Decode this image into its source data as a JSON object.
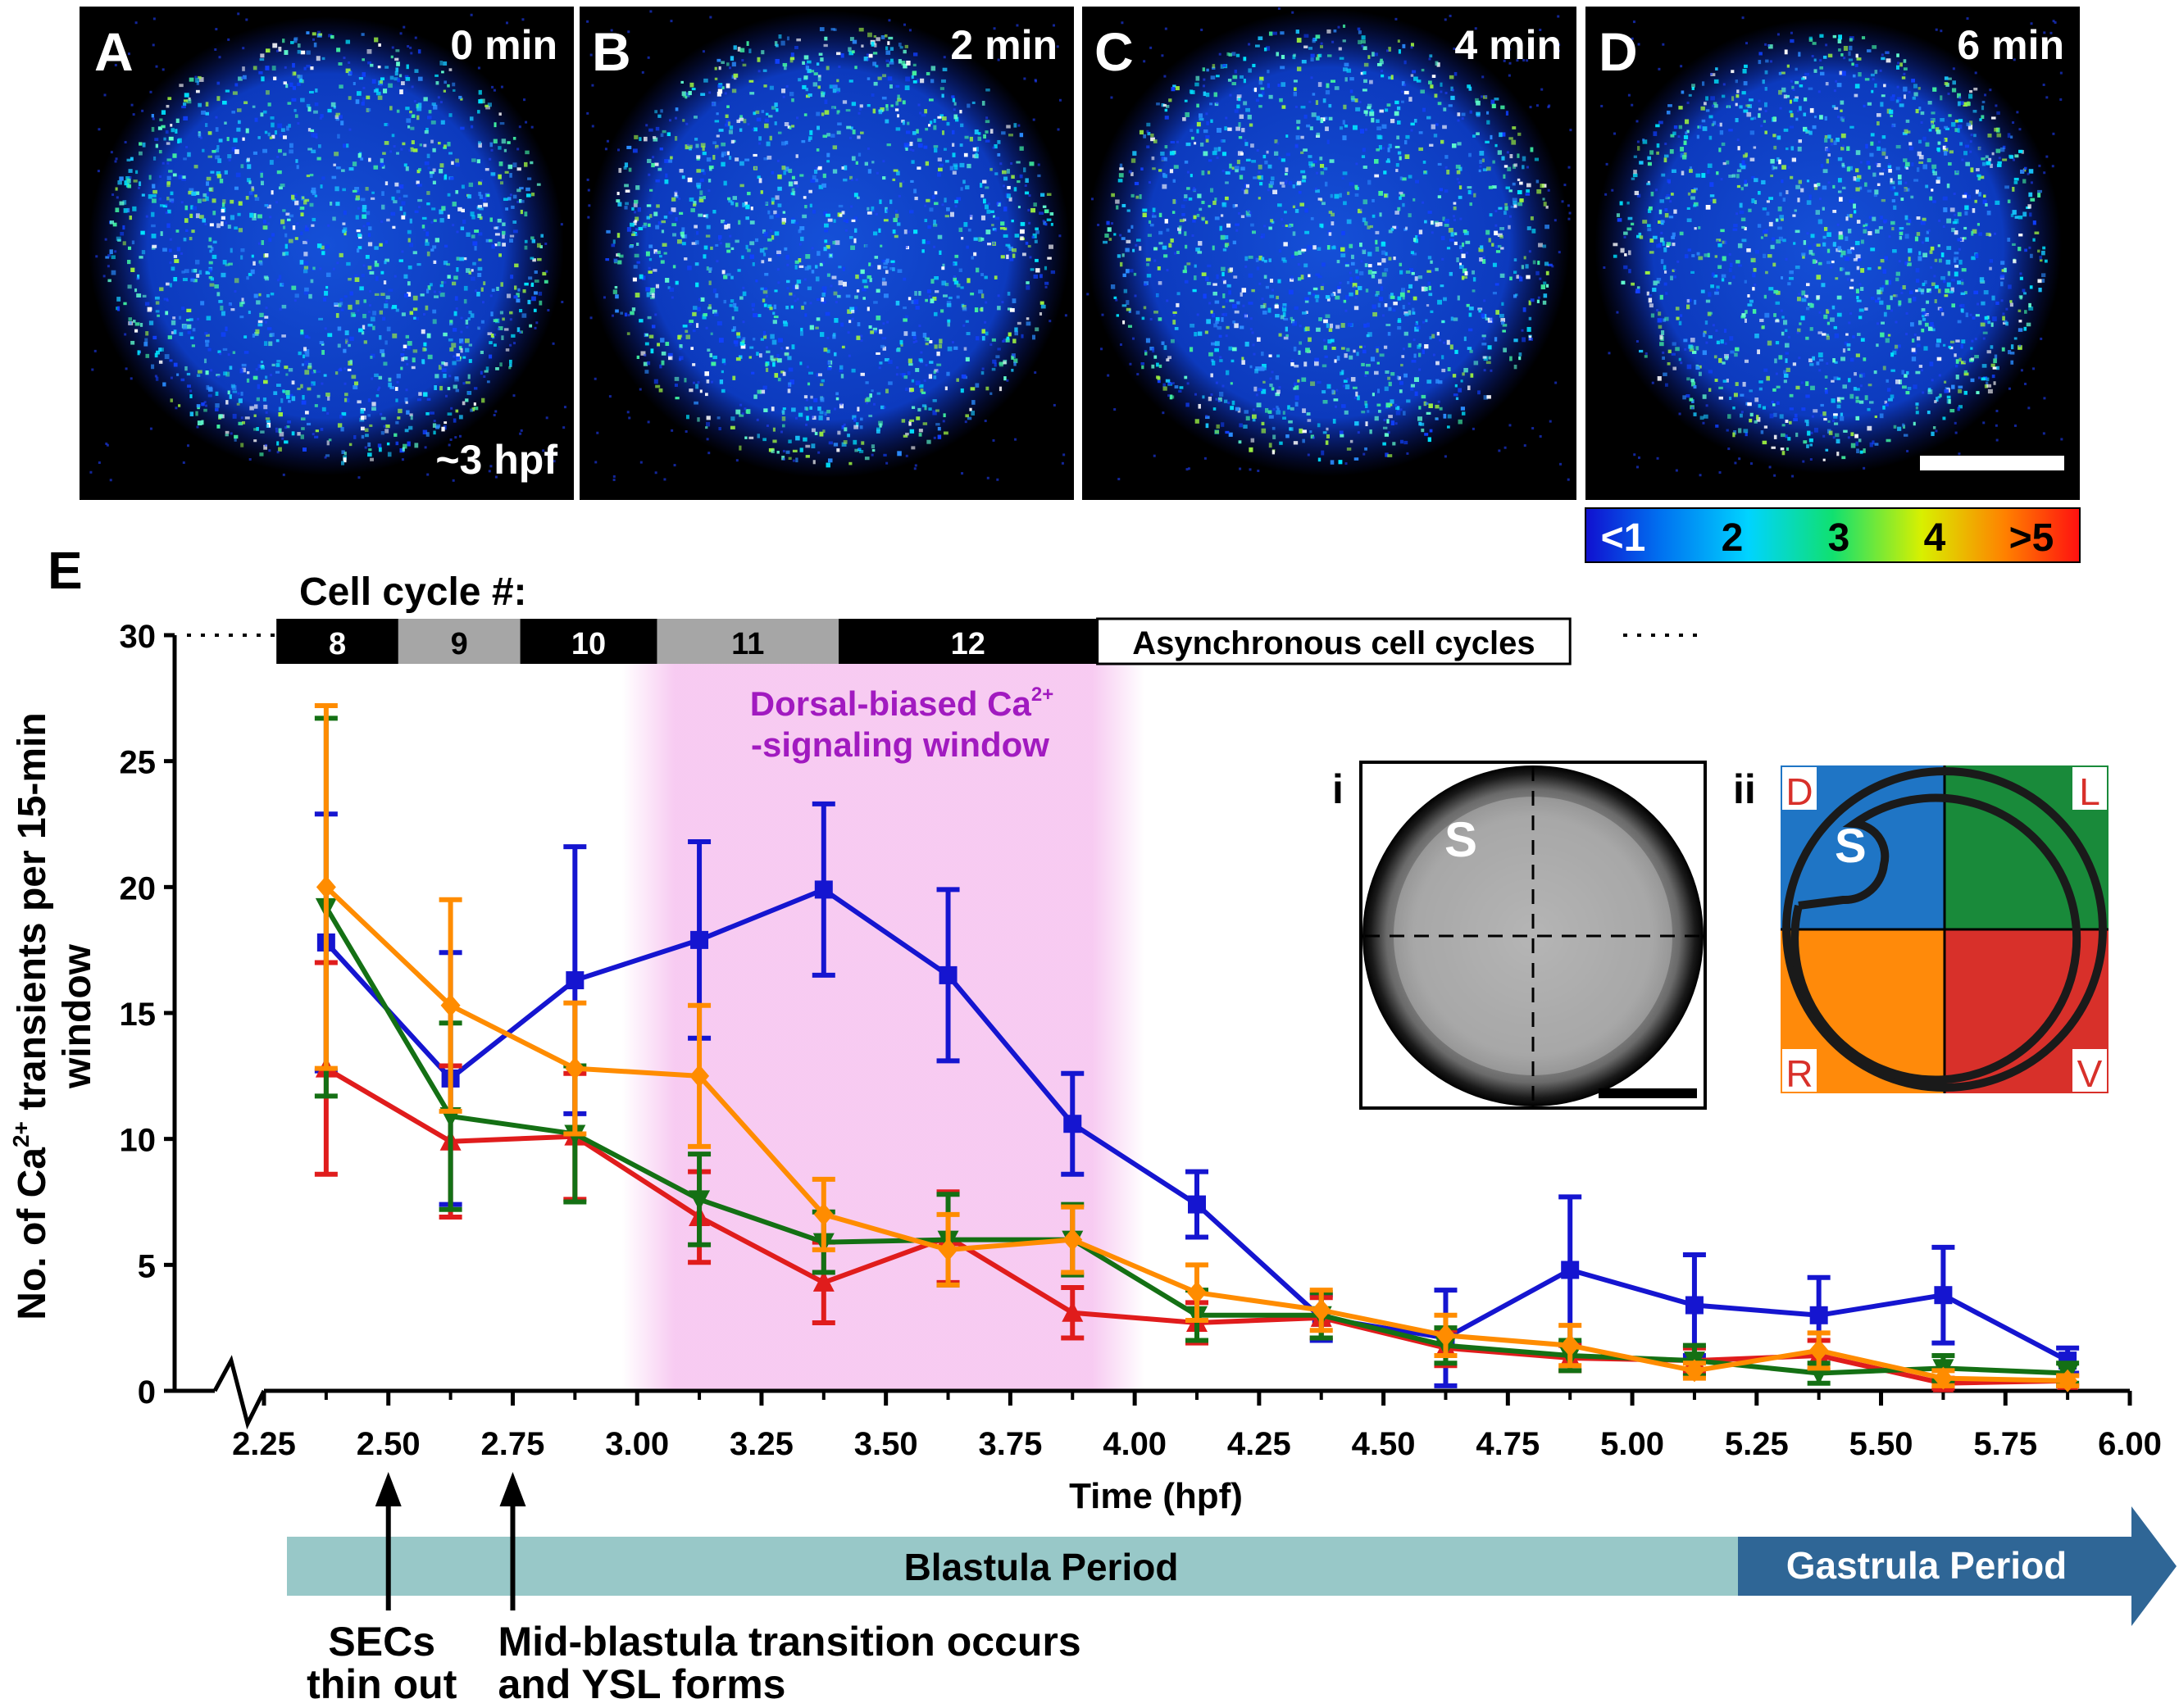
{
  "panels": [
    {
      "letter": "A",
      "time": "0 min",
      "note": "~3 hpf"
    },
    {
      "letter": "B",
      "time": "2 min"
    },
    {
      "letter": "C",
      "time": "4 min"
    },
    {
      "letter": "D",
      "time": "6 min"
    }
  ],
  "colorbar": {
    "labels": [
      "<1",
      "2",
      "3",
      "4",
      ">5"
    ]
  },
  "panel_e": {
    "letter": "E",
    "cell_cycle_title": "Cell cycle #:",
    "cell_cycles": [
      {
        "label": "8",
        "color": "#000000",
        "text_color": "#ffffff"
      },
      {
        "label": "9",
        "color": "#a6a6a6",
        "text_color": "#000000"
      },
      {
        "label": "10",
        "color": "#000000",
        "text_color": "#ffffff"
      },
      {
        "label": "11",
        "color": "#a6a6a6",
        "text_color": "#000000"
      },
      {
        "label": "12",
        "color": "#000000",
        "text_color": "#ffffff"
      },
      {
        "label": "Asynchronous cell cycles",
        "color": "#ffffff",
        "text_color": "#000000"
      }
    ],
    "window_label_line1": "Dorsal-biased Ca",
    "window_label_sup": "2+",
    "window_label_line2": "-signaling window",
    "window_range": [
      2.97,
      4.02
    ],
    "window_color": "#f6c2ef",
    "inset_i_label": "i",
    "inset_i_s": "S",
    "inset_ii_label": "ii",
    "inset_ii_s": "S",
    "quadrants": [
      {
        "label": "D",
        "color": "#1f75c5"
      },
      {
        "label": "L",
        "color": "#198a3a"
      },
      {
        "label": "R",
        "color": "#ff8a0a"
      },
      {
        "label": "V",
        "color": "#d8302a"
      }
    ],
    "periods": [
      {
        "label": "Blastula Period",
        "color": "#98c8c8",
        "text_color": "#000000"
      },
      {
        "label": "Gastrula Period",
        "color": "#2f6696",
        "text_color": "#ffffff"
      }
    ],
    "annotations": [
      {
        "x": 2.5,
        "lines": [
          "SECs",
          "thin out"
        ]
      },
      {
        "x": 2.75,
        "lines": [
          "Mid-blastula transition occurs",
          "and YSL forms"
        ]
      }
    ]
  },
  "chart_data": {
    "type": "line",
    "title": "",
    "xlabel": "Time (hpf)",
    "ylabel_pre": "No. of Ca",
    "ylabel_sup": "2+",
    "ylabel_post": " transients per 15-min",
    "ylabel_line2": "window",
    "xlim": [
      2.25,
      6.0
    ],
    "ylim": [
      0,
      30
    ],
    "x_ticks": [
      "2.25",
      "2.50",
      "2.75",
      "3.00",
      "3.25",
      "3.50",
      "3.75",
      "4.00",
      "4.25",
      "4.50",
      "4.75",
      "5.00",
      "5.25",
      "5.50",
      "5.75",
      "6.00"
    ],
    "y_ticks": [
      "0",
      "5",
      "10",
      "15",
      "20",
      "25",
      "30"
    ],
    "x": [
      2.375,
      2.625,
      2.875,
      3.125,
      3.375,
      3.625,
      3.875,
      4.125,
      4.375,
      4.625,
      4.875,
      5.125,
      5.375,
      5.625,
      5.875
    ],
    "series": [
      {
        "color": "#1515d0",
        "marker": "square",
        "values": [
          17.8,
          12.4,
          16.3,
          17.9,
          19.9,
          16.5,
          10.6,
          7.4,
          2.9,
          2.1,
          4.8,
          3.4,
          3.0,
          3.8,
          1.2
        ],
        "errors": [
          5.1,
          5.0,
          5.3,
          3.9,
          3.4,
          3.4,
          2.0,
          1.3,
          0.9,
          1.9,
          2.9,
          2.0,
          1.5,
          1.9,
          0.5
        ]
      },
      {
        "color": "#e01c1c",
        "marker": "triangle-up",
        "values": [
          12.8,
          9.9,
          10.1,
          6.9,
          4.3,
          6.1,
          3.1,
          2.7,
          2.9,
          1.7,
          1.3,
          1.2,
          1.4,
          0.3,
          0.4
        ],
        "errors": [
          4.2,
          3.0,
          2.5,
          1.8,
          1.6,
          1.8,
          1.0,
          0.8,
          0.8,
          0.7,
          0.5,
          0.5,
          0.6,
          0.2,
          0.2
        ]
      },
      {
        "color": "#147014",
        "marker": "triangle-down",
        "values": [
          19.2,
          10.9,
          10.2,
          7.6,
          5.9,
          6.0,
          6.0,
          3.0,
          3.0,
          1.8,
          1.4,
          1.2,
          0.7,
          0.9,
          0.7
        ],
        "errors": [
          7.5,
          3.7,
          2.7,
          1.8,
          1.2,
          1.8,
          1.4,
          1.0,
          0.9,
          0.7,
          0.6,
          0.6,
          0.4,
          0.5,
          0.4
        ]
      },
      {
        "color": "#ff8c00",
        "marker": "diamond",
        "values": [
          20.0,
          15.3,
          12.8,
          12.5,
          7.0,
          5.6,
          6.0,
          3.9,
          3.2,
          2.2,
          1.8,
          0.8,
          1.6,
          0.5,
          0.4
        ],
        "errors": [
          7.2,
          4.2,
          2.6,
          2.8,
          1.4,
          1.4,
          1.3,
          1.1,
          0.8,
          0.8,
          0.8,
          0.3,
          0.7,
          0.3,
          0.2
        ]
      }
    ]
  }
}
